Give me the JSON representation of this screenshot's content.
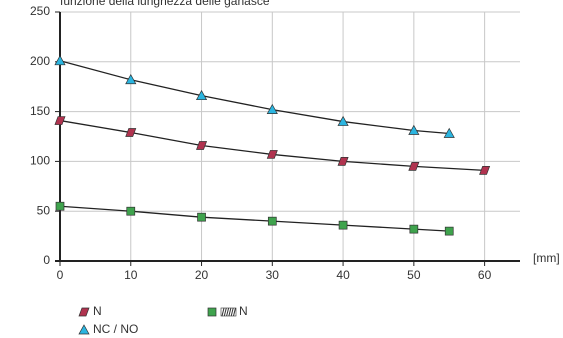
{
  "chart_data": {
    "type": "line",
    "title": "funzione della lunghezza delle ganasce",
    "x_label": "[mm]",
    "xlim": [
      0,
      65
    ],
    "xticks": [
      0,
      10,
      20,
      30,
      40,
      50,
      60
    ],
    "ylim": [
      0,
      250
    ],
    "yticks": [
      0,
      50,
      100,
      150,
      200,
      250
    ],
    "grid": true,
    "line_color": "#222222",
    "series": [
      {
        "name": "N",
        "color": "#b0334f",
        "marker": "parallelogram",
        "x": [
          0,
          10,
          20,
          30,
          40,
          50,
          60
        ],
        "values": [
          141,
          129,
          116,
          107,
          100,
          95,
          91
        ]
      },
      {
        "name": "N",
        "color": "#3fa34d",
        "marker": "square",
        "x": [
          0,
          10,
          20,
          30,
          40,
          50,
          55
        ],
        "values": [
          55,
          50,
          44,
          40,
          36,
          32,
          30
        ]
      },
      {
        "name": "NC / NO",
        "color": "#2bb5e0",
        "marker": "triangle",
        "x": [
          0,
          10,
          20,
          30,
          40,
          50,
          55
        ],
        "values": [
          201,
          182,
          166,
          152,
          140,
          131,
          128
        ]
      }
    ]
  }
}
